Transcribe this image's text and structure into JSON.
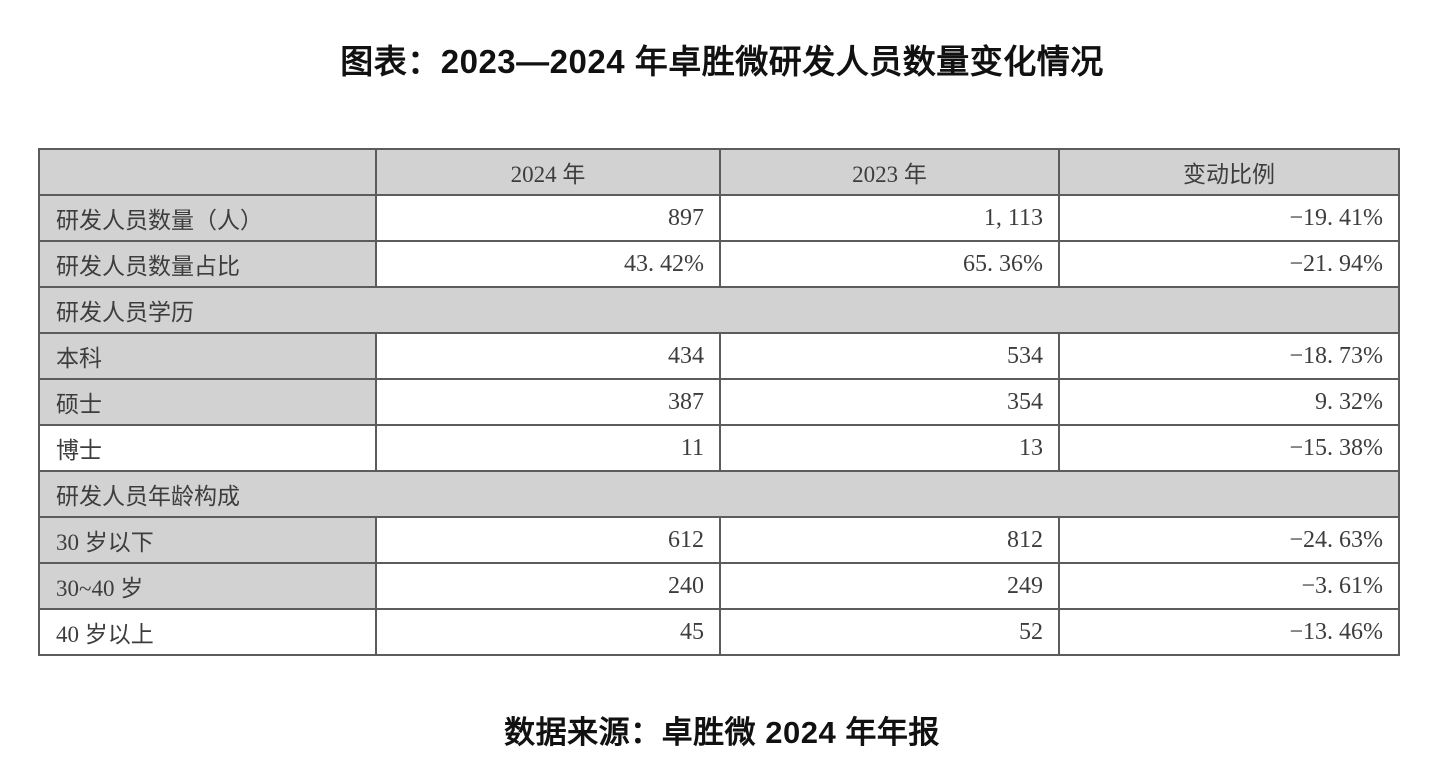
{
  "colors": {
    "background": "#ffffff",
    "shaded_cell": "#d2d2d2",
    "table_border": "#5c5c5c",
    "table_text": "#3d3d3d",
    "heading_text": "#111111"
  },
  "chart_data": {
    "type": "table",
    "title": "图表：2023—2024 年卓胜微研发人员数量变化情况",
    "source": "数据来源：卓胜微 2024 年年报",
    "columns": [
      "",
      "2024 年",
      "2023 年",
      "变动比例"
    ],
    "rows": [
      {
        "kind": "data",
        "label": "研发人员数量（人）",
        "label_shaded": true,
        "values": [
          "897",
          "1, 113",
          "−19. 41%"
        ]
      },
      {
        "kind": "data",
        "label": "研发人员数量占比",
        "label_shaded": true,
        "values": [
          "43. 42%",
          "65. 36%",
          "−21. 94%"
        ]
      },
      {
        "kind": "section",
        "label": "研发人员学历"
      },
      {
        "kind": "data",
        "label": "本科",
        "label_shaded": true,
        "values": [
          "434",
          "534",
          "−18. 73%"
        ]
      },
      {
        "kind": "data",
        "label": "硕士",
        "label_shaded": true,
        "values": [
          "387",
          "354",
          "9. 32%"
        ]
      },
      {
        "kind": "data",
        "label": "博士",
        "label_shaded": false,
        "values": [
          "11",
          "13",
          "−15. 38%"
        ]
      },
      {
        "kind": "section",
        "label": "研发人员年龄构成"
      },
      {
        "kind": "data",
        "label": "30 岁以下",
        "label_shaded": true,
        "values": [
          "612",
          "812",
          "−24. 63%"
        ]
      },
      {
        "kind": "data",
        "label": "30~40 岁",
        "label_shaded": true,
        "values": [
          "240",
          "249",
          "−3. 61%"
        ]
      },
      {
        "kind": "data",
        "label": "40 岁以上",
        "label_shaded": false,
        "values": [
          "45",
          "52",
          "−13. 46%"
        ]
      }
    ]
  }
}
